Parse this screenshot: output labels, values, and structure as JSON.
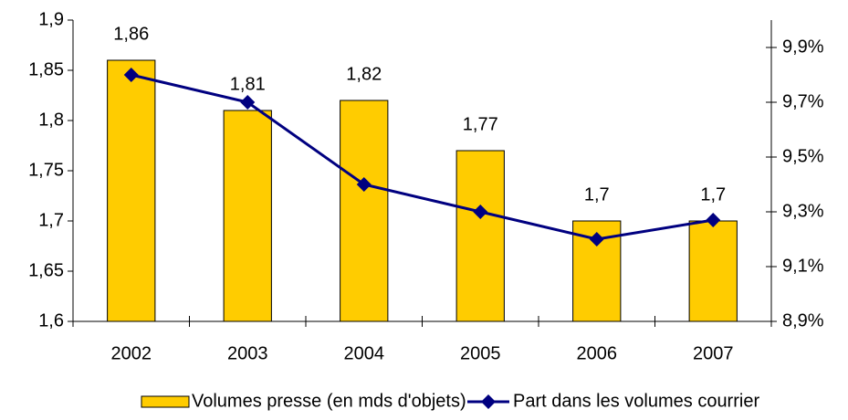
{
  "chart_data": {
    "type": "bar_line",
    "categories": [
      "2002",
      "2003",
      "2004",
      "2005",
      "2006",
      "2007"
    ],
    "series": [
      {
        "name": "Volumes presse (en mds d'objets)",
        "type": "bar",
        "color": "#ffcc00",
        "values": [
          1.86,
          1.81,
          1.82,
          1.77,
          1.7,
          1.7
        ],
        "value_labels": [
          "1,86",
          "1,81",
          "1,82",
          "1,77",
          "1,7",
          "1,7"
        ]
      },
      {
        "name": "Part dans les volumes courrier",
        "type": "line",
        "axis": "y2",
        "color": "#000080",
        "values": [
          9.8,
          9.7,
          9.4,
          9.3,
          9.2,
          9.27
        ]
      }
    ],
    "ylim": [
      1.6,
      1.9
    ],
    "yticks": [
      {
        "value": 1.6,
        "label": "1,6"
      },
      {
        "value": 1.65,
        "label": "1,65"
      },
      {
        "value": 1.7,
        "label": "1,7"
      },
      {
        "value": 1.75,
        "label": "1,75"
      },
      {
        "value": 1.8,
        "label": "1,8"
      },
      {
        "value": 1.85,
        "label": "1,85"
      },
      {
        "value": 1.9,
        "label": "1,9"
      }
    ],
    "y2lim": [
      8.9,
      10.0
    ],
    "y2ticks": [
      {
        "value": 8.9,
        "label": "8,9%"
      },
      {
        "value": 9.1,
        "label": "9,1%"
      },
      {
        "value": 9.3,
        "label": "9,3%"
      },
      {
        "value": 9.5,
        "label": "9,5%"
      },
      {
        "value": 9.7,
        "label": "9,7%"
      },
      {
        "value": 9.9,
        "label": "9,9%"
      }
    ],
    "grid": false,
    "legend": "bottom"
  }
}
